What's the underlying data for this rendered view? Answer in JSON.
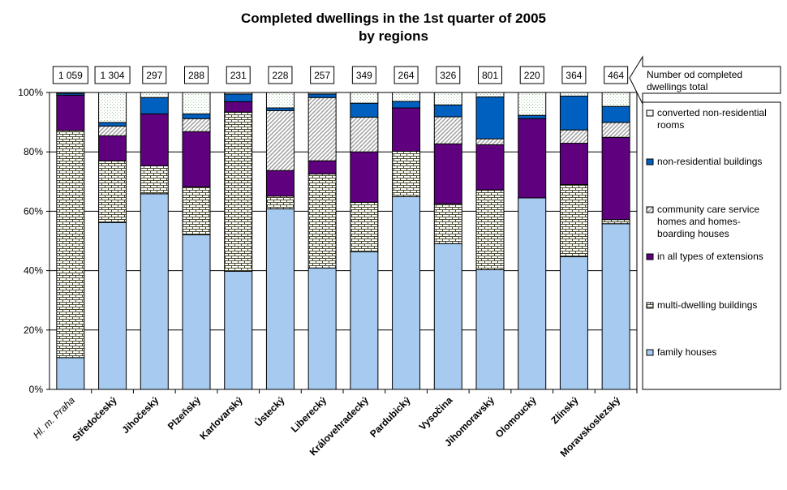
{
  "chart_data": {
    "type": "bar",
    "stacked": "percent",
    "title": "Completed dwellings in the 1st quarter of 2005",
    "subtitle": "by regions",
    "ylim": [
      0,
      100
    ],
    "yticks": [
      "0%",
      "20%",
      "40%",
      "60%",
      "80%",
      "100%"
    ],
    "grid": true,
    "legend_position": "right",
    "categories": [
      "Hl. m. Praha",
      "Středočeský",
      "Jihočeský",
      "Plzeňský",
      "Karlovarský",
      "Ústecký",
      "Liberecký",
      "Královehradecký",
      "Pardubický",
      "Vysočina",
      "Jihomoravský",
      "Olomoucký",
      "Zlínský",
      "Moravskoslezský"
    ],
    "totals_label": "Number od completed dwellings total",
    "totals": [
      "1 059",
      "1 304",
      "297",
      "288",
      "231",
      "228",
      "257",
      "349",
      "264",
      "326",
      "801",
      "220",
      "364",
      "464"
    ],
    "series": [
      {
        "name": "family houses",
        "color": "#a6caf0",
        "pattern": "solid",
        "values": [
          10.7,
          56.2,
          65.9,
          52.1,
          39.8,
          60.8,
          40.9,
          46.4,
          64.9,
          49.1,
          40.3,
          64.5,
          44.7,
          55.8
        ]
      },
      {
        "name": "multi-dwelling buildings",
        "color": "#4a4a30",
        "pattern": "brick",
        "values": [
          76.5,
          20.8,
          9.4,
          16.1,
          53.6,
          4.3,
          31.7,
          16.6,
          15.3,
          13.4,
          26.9,
          0,
          24.3,
          1.4
        ]
      },
      {
        "name": "in all types of extensions",
        "color": "#5f007f",
        "pattern": "solid",
        "values": [
          11.9,
          8.4,
          17.5,
          18.6,
          3.5,
          8.6,
          4.4,
          17.0,
          14.6,
          20.2,
          15.2,
          26.7,
          13.9,
          27.7
        ]
      },
      {
        "name": "community care service homes and homes-boarding houses",
        "color": "#a0a0a0",
        "pattern": "diagonal",
        "values": [
          0,
          3.3,
          0,
          4.4,
          0,
          20.2,
          21.3,
          11.7,
          0,
          9.1,
          2.0,
          0,
          4.5,
          5.0
        ]
      },
      {
        "name": "non-residential buildings",
        "color": "#0060c0",
        "pattern": "solid",
        "values": [
          0.6,
          1.2,
          5.5,
          1.6,
          2.6,
          0.9,
          1.2,
          4.7,
          2.2,
          4.0,
          14.1,
          1.1,
          11.4,
          5.4
        ]
      },
      {
        "name": "converted non-residential rooms",
        "color": "#c8e0c8",
        "pattern": "dots",
        "values": [
          0.3,
          10.1,
          1.7,
          7.2,
          0.5,
          5.2,
          0.5,
          3.6,
          3.0,
          4.2,
          1.5,
          7.7,
          1.2,
          4.7
        ]
      }
    ]
  }
}
